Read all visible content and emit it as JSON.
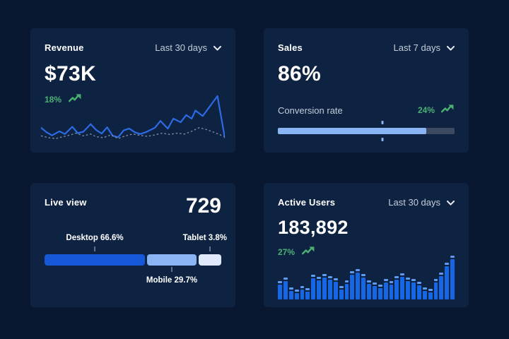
{
  "theme": {
    "background": "#0a1731",
    "card": "#0e2342",
    "accent_line": "#2d6ae5",
    "light_blue": "#8ab4f3",
    "green": "#4cb073",
    "muted_text": "#c3cdda",
    "track_gray": "#3d4960"
  },
  "cards": {
    "revenue": {
      "title": "Revenue",
      "range": "Last 30 days",
      "value": "$73K",
      "delta": "18%",
      "chart_data": {
        "type": "line",
        "ylim": [
          0,
          100
        ],
        "grid": false,
        "legend": "none",
        "series": [
          {
            "name": "current",
            "style": "solid",
            "x": [
              0,
              3,
              6,
              10,
              13,
              17,
              20,
              23,
              27,
              30,
              33,
              36,
              39,
              42,
              45,
              48,
              51,
              54,
              57,
              60,
              62,
              65,
              69,
              72,
              76,
              79,
              82,
              84,
              88,
              92,
              96,
              100
            ],
            "y": [
              30,
              20,
              13,
              22,
              16,
              32,
              18,
              21,
              38,
              25,
              17,
              31,
              12,
              9,
              24,
              28,
              20,
              16,
              20,
              26,
              30,
              45,
              28,
              50,
              42,
              58,
              50,
              68,
              56,
              78,
              100,
              8
            ]
          },
          {
            "name": "previous",
            "style": "dotted",
            "x": [
              0,
              4,
              8,
              12,
              16,
              19,
              23,
              27,
              30,
              34,
              38,
              42,
              46,
              50,
              54,
              58,
              62,
              66,
              70,
              74,
              78,
              82,
              86,
              90,
              94,
              100
            ],
            "y": [
              12,
              8,
              6,
              10,
              14,
              18,
              12,
              16,
              10,
              8,
              14,
              6,
              12,
              16,
              13,
              11,
              14,
              18,
              15,
              18,
              16,
              22,
              30,
              26,
              20,
              10
            ]
          }
        ]
      }
    },
    "sales": {
      "title": "Sales",
      "range": "Last 7 days",
      "value": "86%",
      "metric_label": "Conversion rate",
      "delta": "24%",
      "chart_data": {
        "type": "progress-bar",
        "fill_pct": 84,
        "marker_pct": 59
      }
    },
    "live_view": {
      "title": "Live view",
      "value": "729",
      "chart_data": {
        "type": "stacked-bar",
        "segments": [
          {
            "name": "Desktop",
            "label": "Desktop 66.6%",
            "value_pct": 66.6,
            "width_pct": 56.8,
            "color": "#1758d9"
          },
          {
            "name": "Mobile",
            "label": "Mobile 29.7%",
            "value_pct": 29.7,
            "width_pct": 28.0,
            "color": "#8ab4f3"
          },
          {
            "name": "Tablet",
            "label": "Tablet 3.8%",
            "value_pct": 3.8,
            "width_pct": 12.8,
            "color": "#dfe9fb"
          }
        ]
      }
    },
    "active_users": {
      "title": "Active Users",
      "range": "Last 30 days",
      "value": "183,892",
      "delta": "27%",
      "chart_data": {
        "type": "bar",
        "values": [
          42,
          50,
          28,
          22,
          30,
          26,
          56,
          52,
          58,
          54,
          48,
          30,
          44,
          64,
          70,
          58,
          44,
          38,
          34,
          46,
          42,
          54,
          60,
          50,
          46,
          40,
          28,
          24,
          46,
          62,
          84,
          100
        ]
      }
    }
  }
}
